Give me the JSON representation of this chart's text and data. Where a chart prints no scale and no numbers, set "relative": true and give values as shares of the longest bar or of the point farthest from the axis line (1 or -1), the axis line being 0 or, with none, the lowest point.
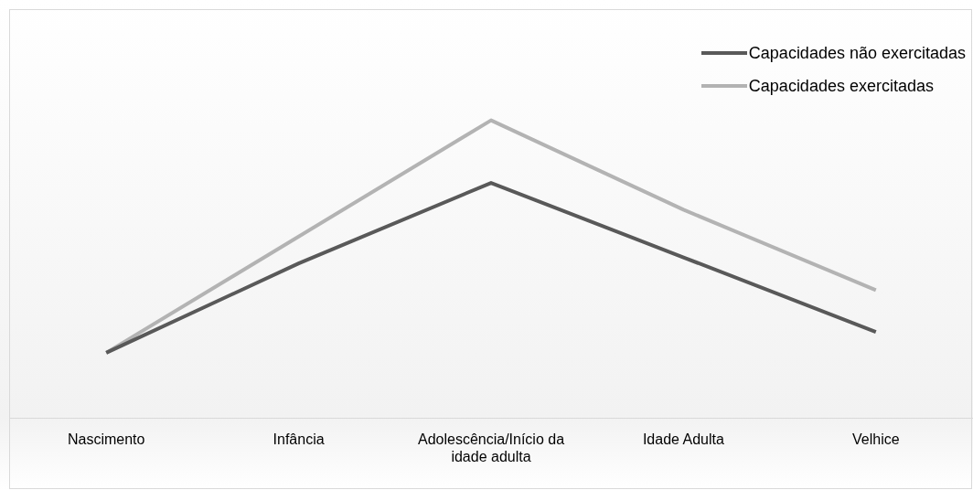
{
  "chart_data": {
    "type": "line",
    "relative": true,
    "categories": [
      "Nascimento",
      "Infância",
      "Adolescência/Início da idade adulta",
      "Idade Adulta",
      "Velhice"
    ],
    "series": [
      {
        "name": "Capacidades não exercitadas",
        "color": "#595959",
        "values": [
          0.22,
          0.52,
          0.79,
          0.54,
          0.29
        ]
      },
      {
        "name": "Capacidades exercitadas",
        "color": "#b3b3b3",
        "values": [
          0.22,
          0.61,
          1,
          0.7,
          0.43
        ]
      }
    ],
    "legend": "top right",
    "marker": "none",
    "line_style": "solid",
    "grid": false
  }
}
